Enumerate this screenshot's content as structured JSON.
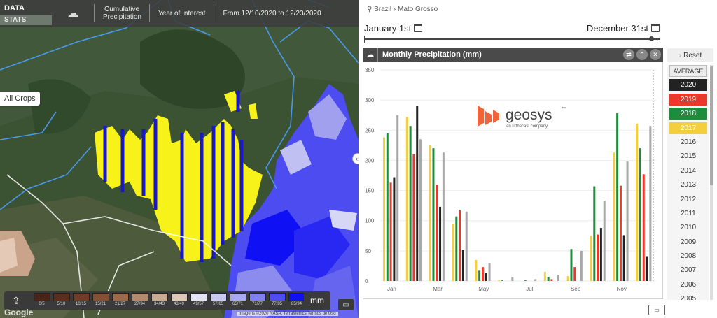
{
  "map": {
    "topbar": {
      "data_label": "DATA",
      "stats_label": "STATS",
      "icon": "rain-cloud-icon",
      "items": [
        "Cumulative Precipitation",
        "Year of Interest",
        "From 12/10/2020 to 12/23/2020"
      ]
    },
    "crop_label": "All Crops",
    "legend": {
      "share_icon": "share-icon",
      "unit_label": "mm",
      "swatches": [
        {
          "label": "0/5",
          "color": "#4a2418"
        },
        {
          "label": "5/10",
          "color": "#5c2e20"
        },
        {
          "label": "10/15",
          "color": "#6e3c28"
        },
        {
          "label": "15/21",
          "color": "#835034"
        },
        {
          "label": "21/27",
          "color": "#9c6a4a"
        },
        {
          "label": "27/34",
          "color": "#b38a6e"
        },
        {
          "label": "34/43",
          "color": "#c9aa92"
        },
        {
          "label": "43/49",
          "color": "#ddc8b8"
        },
        {
          "label": "49/57",
          "color": "#e3e3f3"
        },
        {
          "label": "57/65",
          "color": "#c9c9f1"
        },
        {
          "label": "65/71",
          "color": "#a9a9ef"
        },
        {
          "label": "71/77",
          "color": "#8080f0"
        },
        {
          "label": "77/85",
          "color": "#4d4df3"
        },
        {
          "label": "85/94",
          "color": "#1010f5"
        }
      ]
    },
    "google_label": "Google",
    "attribution": "Imagens ©2020 NASA, TerraMetrics  Termos de Uso",
    "splitter_icon": "drag-handle-icon"
  },
  "side": {
    "breadcrumb": "Brazil › Mato Grosso",
    "date_start": "January 1st",
    "date_end": "December 31st",
    "chart_title": "Monthly Precipitation (mm)",
    "reset_label": "Reset",
    "average_label": "AVERAGE",
    "years": [
      {
        "label": "2020",
        "color": "#222222",
        "selected": true
      },
      {
        "label": "2019",
        "color": "#e8392b",
        "selected": true
      },
      {
        "label": "2018",
        "color": "#1f8c3b",
        "selected": true
      },
      {
        "label": "2017",
        "color": "#f5cf3b",
        "selected": true
      },
      {
        "label": "2016",
        "selected": false
      },
      {
        "label": "2015",
        "selected": false
      },
      {
        "label": "2014",
        "selected": false
      },
      {
        "label": "2013",
        "selected": false
      },
      {
        "label": "2012",
        "selected": false
      },
      {
        "label": "2011",
        "selected": false
      },
      {
        "label": "2010",
        "selected": false
      },
      {
        "label": "2009",
        "selected": false
      },
      {
        "label": "2008",
        "selected": false
      },
      {
        "label": "2007",
        "selected": false
      },
      {
        "label": "2006",
        "selected": false
      },
      {
        "label": "2005",
        "selected": false
      }
    ],
    "logo": {
      "name": "geosys",
      "tagline": "an urthecast company",
      "trademark": "™"
    }
  },
  "chart_data": {
    "type": "bar",
    "title": "Monthly Precipitation (mm)",
    "ylim": [
      0,
      350
    ],
    "yticks": [
      0,
      50,
      100,
      150,
      200,
      250,
      300,
      350
    ],
    "categories": [
      "Jan",
      "Feb",
      "Mar",
      "Apr",
      "May",
      "Jun",
      "Jul",
      "Aug",
      "Sep",
      "Oct",
      "Nov",
      "Dec"
    ],
    "x_tick_labels": [
      "Jan",
      "Mar",
      "May",
      "Jul",
      "Sep",
      "Nov"
    ],
    "series": [
      {
        "name": "2017",
        "color": "#f5cf3b",
        "values": [
          238,
          272,
          225,
          95,
          35,
          2,
          0,
          15,
          8,
          75,
          213,
          261
        ]
      },
      {
        "name": "2018",
        "color": "#1f8c3b",
        "values": [
          245,
          257,
          220,
          107,
          17,
          1,
          1,
          7,
          53,
          157,
          278,
          220
        ]
      },
      {
        "name": "2019",
        "color": "#e8392b",
        "values": [
          163,
          210,
          160,
          117,
          23,
          0,
          0,
          3,
          23,
          77,
          158,
          177
        ]
      },
      {
        "name": "2020",
        "color": "#222222",
        "values": [
          172,
          290,
          123,
          52,
          13,
          0,
          0,
          0,
          0,
          88,
          76,
          40
        ]
      },
      {
        "name": "AVERAGE",
        "color": "#a8a8a8",
        "values": [
          275,
          235,
          213,
          115,
          30,
          7,
          3,
          10,
          50,
          133,
          198,
          257
        ]
      }
    ]
  }
}
